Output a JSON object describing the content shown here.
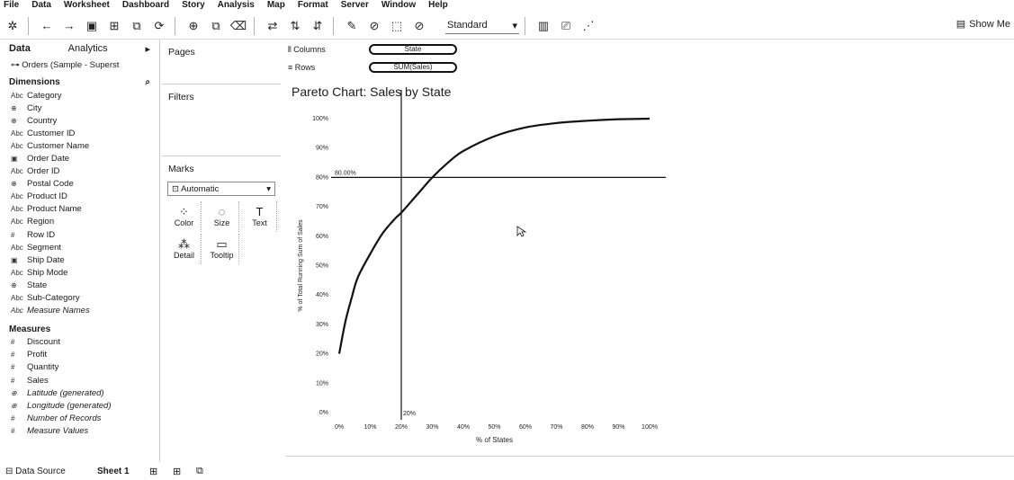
{
  "menu": [
    "File",
    "Data",
    "Worksheet",
    "Dashboard",
    "Story",
    "Analysis",
    "Map",
    "Format",
    "Server",
    "Window",
    "Help"
  ],
  "toolbar": {
    "fit_value": "Standard",
    "show_me": "Show Me"
  },
  "datapane": {
    "tabs": [
      "Data",
      "Analytics"
    ],
    "datasource": "Orders (Sample - Superst",
    "dimensions_title": "Dimensions",
    "dimensions": [
      {
        "icon": "Abc",
        "name": "Category"
      },
      {
        "icon": "⊕",
        "name": "City"
      },
      {
        "icon": "⊕",
        "name": "Country"
      },
      {
        "icon": "Abc",
        "name": "Customer ID"
      },
      {
        "icon": "Abc",
        "name": "Customer Name"
      },
      {
        "icon": "▣",
        "name": "Order Date"
      },
      {
        "icon": "Abc",
        "name": "Order ID"
      },
      {
        "icon": "⊕",
        "name": "Postal Code"
      },
      {
        "icon": "Abc",
        "name": "Product ID"
      },
      {
        "icon": "Abc",
        "name": "Product Name"
      },
      {
        "icon": "Abc",
        "name": "Region"
      },
      {
        "icon": "#",
        "name": "Row ID"
      },
      {
        "icon": "Abc",
        "name": "Segment"
      },
      {
        "icon": "▣",
        "name": "Ship Date"
      },
      {
        "icon": "Abc",
        "name": "Ship Mode"
      },
      {
        "icon": "⊕",
        "name": "State"
      },
      {
        "icon": "Abc",
        "name": "Sub-Category"
      },
      {
        "icon": "Abc",
        "name": "Measure Names",
        "italic": true
      }
    ],
    "measures_title": "Measures",
    "measures": [
      {
        "icon": "#",
        "name": "Discount"
      },
      {
        "icon": "#",
        "name": "Profit"
      },
      {
        "icon": "#",
        "name": "Quantity"
      },
      {
        "icon": "#",
        "name": "Sales"
      },
      {
        "icon": "⊕",
        "name": "Latitude (generated)",
        "italic": true
      },
      {
        "icon": "⊕",
        "name": "Longitude (generated)",
        "italic": true
      },
      {
        "icon": "#",
        "name": "Number of Records",
        "italic": true
      },
      {
        "icon": "#",
        "name": "Measure Values",
        "italic": true
      }
    ]
  },
  "cards": {
    "pages": "Pages",
    "filters": "Filters",
    "marks": "Marks",
    "mark_type": "Automatic",
    "mark_buttons": [
      {
        "icon": "⁘",
        "label": "Color"
      },
      {
        "icon": "◌",
        "label": "Size"
      },
      {
        "icon": "T",
        "label": "Text"
      },
      {
        "icon": "⁂",
        "label": "Detail"
      },
      {
        "icon": "▭",
        "label": "Tooltip"
      }
    ]
  },
  "shelves": {
    "columns_label": "Columns",
    "rows_label": "Rows",
    "columns_pill": "State",
    "rows_pill": "SUM(Sales)"
  },
  "statusbar": {
    "data_source": "Data Source",
    "sheet": "Sheet 1"
  },
  "chart_data": {
    "type": "line",
    "title": "Pareto Chart: Sales by State",
    "xlabel": "% of States",
    "ylabel": "% of Total Running Sum of Sales",
    "xlim": [
      0,
      100
    ],
    "ylim": [
      0,
      100
    ],
    "x_ticks": [
      "0%",
      "10%",
      "20%",
      "30%",
      "40%",
      "50%",
      "60%",
      "70%",
      "80%",
      "90%",
      "100%"
    ],
    "y_ticks": [
      "0%",
      "10%",
      "20%",
      "30%",
      "40%",
      "50%",
      "60%",
      "70%",
      "80%",
      "90%",
      "100%"
    ],
    "reference_lines": [
      {
        "axis": "y",
        "value": 80,
        "label": "80.00%"
      },
      {
        "axis": "x",
        "value": 20,
        "label": "20%"
      }
    ],
    "series": [
      {
        "x": [
          0,
          2,
          4,
          6,
          10,
          14,
          18,
          20,
          25,
          30,
          35,
          40,
          50,
          60,
          70,
          80,
          90,
          100
        ],
        "y": [
          20,
          31,
          39,
          46,
          54,
          61,
          66,
          68,
          74,
          80,
          85,
          89,
          94,
          97,
          98.5,
          99.3,
          99.8,
          100
        ]
      }
    ]
  }
}
